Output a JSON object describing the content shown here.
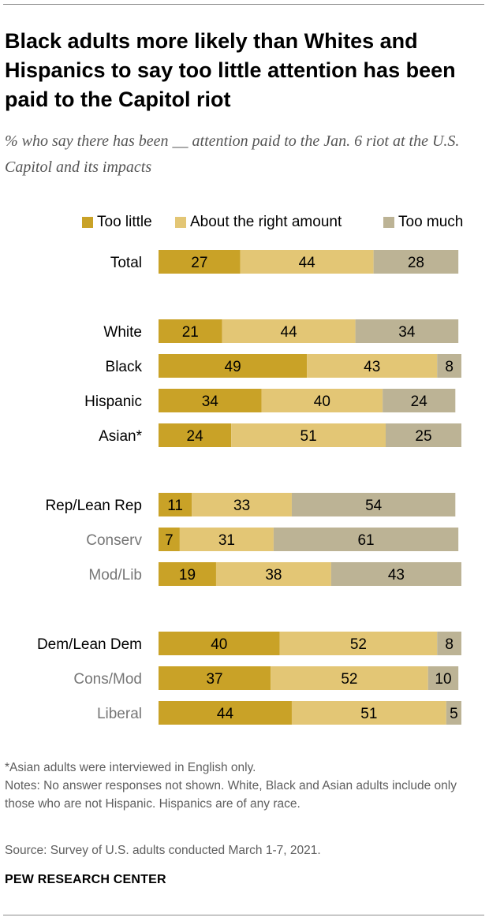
{
  "title": "Black adults more likely than Whites and Hispanics to say too little attention has been paid to the Capitol riot",
  "subtitle": "% who say there has been __ attention paid to the Jan. 6 riot at the U.S. Capitol and its impacts",
  "footnote": "*Asian adults were interviewed in English only.",
  "notes": "Notes: No answer responses not shown. White, Black and Asian adults include only those who are not Hispanic. Hispanics are of any race.",
  "source": "Source: Survey of U.S. adults conducted March 1-7, 2021.",
  "brand": "PEW RESEARCH CENTER",
  "colors": {
    "too_little": "#c9a227",
    "about_right": "#e3c675",
    "too_much": "#bcb395",
    "label_primary": "#000000",
    "label_secondary": "#767676"
  },
  "chart_data": {
    "type": "bar",
    "orientation": "horizontal",
    "stacked": true,
    "legend_position": "top",
    "xlim": [
      0,
      100
    ],
    "series": [
      {
        "name": "Too little",
        "color": "#c9a227",
        "values": [
          27,
          21,
          49,
          34,
          24,
          11,
          7,
          19,
          40,
          37,
          44
        ]
      },
      {
        "name": "About the right amount",
        "color": "#e3c675",
        "values": [
          44,
          44,
          43,
          40,
          51,
          33,
          31,
          38,
          52,
          52,
          51
        ]
      },
      {
        "name": "Too much",
        "color": "#bcb395",
        "values": [
          28,
          34,
          8,
          24,
          25,
          54,
          61,
          43,
          8,
          10,
          5
        ]
      }
    ],
    "categories": [
      "Total",
      "White",
      "Black",
      "Hispanic",
      "Asian*",
      "Rep/Lean Rep",
      "Conserv",
      "Mod/Lib",
      "Dem/Lean Dem",
      "Cons/Mod",
      "Liberal"
    ],
    "category_style": [
      "primary",
      "primary",
      "primary",
      "primary",
      "primary",
      "primary",
      "secondary",
      "secondary",
      "primary",
      "secondary",
      "secondary"
    ]
  }
}
